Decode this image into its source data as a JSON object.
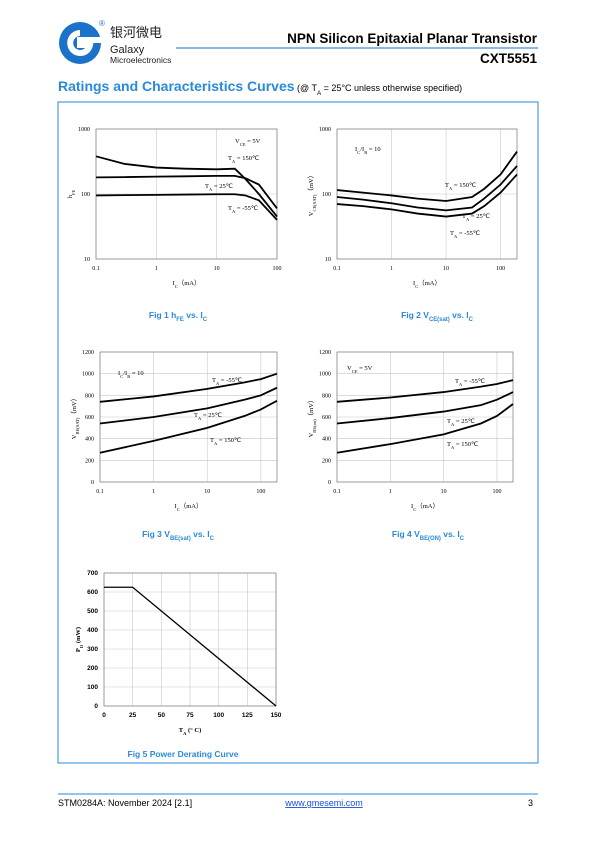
{
  "header": {
    "company_cn": "银河微电",
    "company": "Galaxy",
    "company_sub": "Microelectronics",
    "title": "NPN Silicon Epitaxial Planar Transistor",
    "part": "CXT5551"
  },
  "section": {
    "title": "Ratings and Characteristics Curves",
    "condition": [
      "(@ T",
      "A",
      " = 25°C unless otherwise specified)"
    ]
  },
  "footer": {
    "doc": "STM0284A: November 2024 [2.1]",
    "url": "www.gmesemi.com",
    "page": "3"
  },
  "chart_data": [
    {
      "type": "line",
      "xlog": true,
      "ylog": true,
      "grid": true,
      "xlim": [
        0.1,
        100
      ],
      "ylim": [
        10,
        1000
      ],
      "xticks": [
        0.1,
        1,
        10,
        100
      ],
      "yticks": [
        10,
        100,
        1000
      ],
      "ylabel": [
        "h",
        "FE"
      ],
      "xlabel": [
        "I",
        "C",
        "（mA）"
      ],
      "caption": [
        "Fig 1   h",
        "FE",
        " vs. I",
        "C"
      ],
      "annotations": [
        [
          "V",
          "CE",
          " =  5V"
        ],
        [
          "T",
          "A",
          " = 150℃"
        ],
        [
          "T",
          "A",
          " = 25℃"
        ],
        [
          "T",
          "A",
          " = -55℃"
        ]
      ],
      "x": [
        0.1,
        0.3,
        1,
        3,
        10,
        20,
        30,
        50,
        100
      ],
      "series": [
        {
          "color": "#000000",
          "values": [
            380,
            290,
            255,
            245,
            240,
            245,
            170,
            100,
            45
          ]
        },
        {
          "color": "#000000",
          "values": [
            180,
            182,
            185,
            187,
            190,
            190,
            175,
            140,
            60
          ]
        },
        {
          "color": "#000000",
          "values": [
            95,
            96,
            97,
            98,
            99,
            99,
            95,
            80,
            40
          ]
        }
      ]
    },
    {
      "type": "line",
      "xlog": true,
      "ylog": true,
      "grid": true,
      "xlim": [
        0.1,
        200
      ],
      "ylim": [
        10,
        1000
      ],
      "xticks": [
        0.1,
        1,
        10,
        100
      ],
      "yticks": [
        10,
        100,
        1000
      ],
      "ylabel": [
        "V",
        "CE(SAT)",
        "（mV）"
      ],
      "xlabel": [
        "I",
        "C",
        "（mA）"
      ],
      "caption": [
        "Fig 2    V",
        "CE(sat)",
        " vs. I",
        "C"
      ],
      "annotations": [
        [
          "I",
          "C",
          "/I",
          "B",
          " = 10"
        ],
        [
          "T",
          "A",
          " = 150℃"
        ],
        [
          "T",
          "A",
          " = 25℃"
        ],
        [
          "T",
          "A",
          " = -55℃"
        ]
      ],
      "x": [
        0.1,
        0.3,
        1,
        3,
        10,
        30,
        50,
        100,
        200
      ],
      "series": [
        {
          "color": "#000000",
          "values": [
            115,
            105,
            95,
            85,
            78,
            90,
            120,
            200,
            450
          ]
        },
        {
          "color": "#000000",
          "values": [
            90,
            82,
            72,
            62,
            56,
            62,
            85,
            140,
            270
          ]
        },
        {
          "color": "#000000",
          "values": [
            70,
            65,
            58,
            50,
            45,
            50,
            65,
            105,
            200
          ]
        }
      ]
    },
    {
      "type": "line",
      "xlog": true,
      "ylog": false,
      "grid": true,
      "xlim": [
        0.1,
        200
      ],
      "ylim": [
        0,
        1200
      ],
      "xticks": [
        0.1,
        1,
        10,
        100
      ],
      "yticks": [
        0,
        200,
        400,
        600,
        800,
        1000,
        1200
      ],
      "ylabel": [
        "V",
        "BE(SAT)",
        "（mV）"
      ],
      "xlabel": [
        "I",
        "C",
        "（mA）"
      ],
      "caption": [
        "Fig 3    V",
        "BE(sat)",
        " vs. I",
        "C"
      ],
      "annotations": [
        [
          "I",
          "C",
          "/I",
          "B",
          " = 10"
        ],
        [
          "T",
          "A",
          " = -55℃"
        ],
        [
          "T",
          "A",
          " = 25℃"
        ],
        [
          "T",
          "A",
          " = 150℃"
        ]
      ],
      "x": [
        0.1,
        1,
        10,
        50,
        100,
        200
      ],
      "series": [
        {
          "color": "#000000",
          "values": [
            740,
            790,
            860,
            920,
            950,
            1000
          ]
        },
        {
          "color": "#000000",
          "values": [
            540,
            600,
            680,
            760,
            800,
            870
          ]
        },
        {
          "color": "#000000",
          "values": [
            270,
            380,
            500,
            610,
            670,
            750
          ]
        }
      ]
    },
    {
      "type": "line",
      "xlog": true,
      "ylog": false,
      "grid": true,
      "xlim": [
        0.1,
        200
      ],
      "ylim": [
        0,
        1200
      ],
      "xticks": [
        0.1,
        1,
        10,
        100
      ],
      "yticks": [
        0,
        200,
        400,
        600,
        800,
        1000,
        1200
      ],
      "ylabel": [
        "V",
        "BE(on)",
        "（mV）"
      ],
      "xlabel": [
        "I",
        "C",
        "（mA）"
      ],
      "caption": [
        "Fig 4    V",
        "BE(ON)",
        " vs. I",
        "C"
      ],
      "annotations": [
        [
          "V",
          "CE",
          " = 5V"
        ],
        [
          "T",
          "A",
          " = -55℃"
        ],
        [
          "T",
          "A",
          " = 25℃"
        ],
        [
          "T",
          "A",
          " = 150℃"
        ]
      ],
      "x": [
        0.1,
        1,
        10,
        50,
        100,
        200
      ],
      "series": [
        {
          "color": "#000000",
          "values": [
            740,
            780,
            830,
            880,
            905,
            940
          ]
        },
        {
          "color": "#000000",
          "values": [
            540,
            590,
            650,
            710,
            760,
            830
          ]
        },
        {
          "color": "#000000",
          "values": [
            270,
            350,
            440,
            540,
            610,
            720
          ]
        }
      ]
    },
    {
      "type": "line",
      "xlog": false,
      "ylog": false,
      "grid": true,
      "xlim": [
        0,
        150
      ],
      "ylim": [
        0,
        700
      ],
      "xticks": [
        0,
        25,
        50,
        75,
        100,
        125,
        150
      ],
      "yticks": [
        0,
        100,
        200,
        300,
        400,
        500,
        600,
        700
      ],
      "ylabel": [
        "P",
        "D",
        " (mW)"
      ],
      "xlabel": [
        "T",
        "A",
        " (° C)"
      ],
      "caption": [
        "Fig 5   Power Derating Curve"
      ],
      "annotations": [],
      "x": [
        0,
        25,
        150
      ],
      "series": [
        {
          "color": "#000000",
          "values": [
            625,
            625,
            0
          ]
        }
      ]
    }
  ]
}
